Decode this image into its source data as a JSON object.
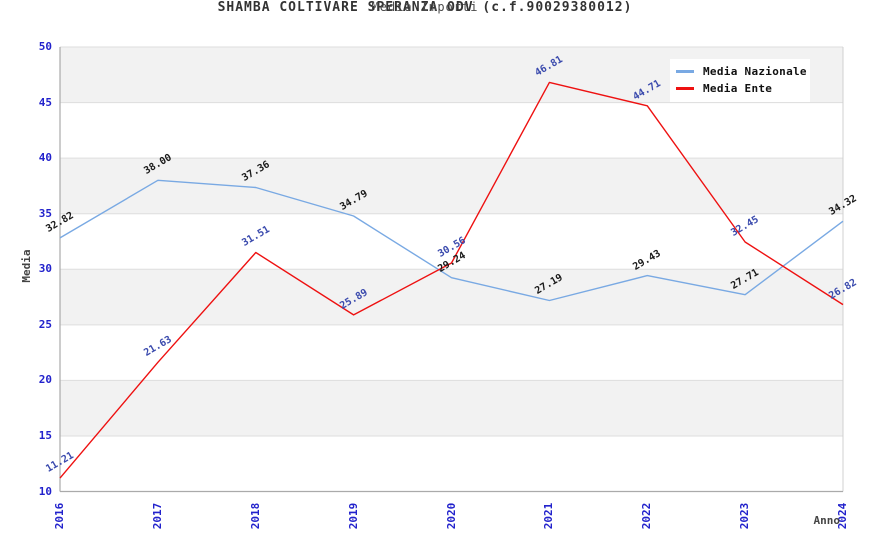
{
  "title": "SHAMBA COLTIVARE SPERANZA ODV (c.f.90029380012)",
  "subtitle": "Media Importi",
  "chart_data": {
    "type": "line",
    "title": "SHAMBA COLTIVARE SPERANZA ODV (c.f.90029380012)",
    "subtitle": "Media Importi",
    "xlabel": "Anno",
    "ylabel": "Media",
    "x": [
      2016,
      2017,
      2018,
      2019,
      2020,
      2021,
      2022,
      2023,
      2024
    ],
    "series": [
      {
        "name": "Media Nazionale",
        "color": "#79a9e3",
        "label_color": "#1a1a1a",
        "values": [
          32.82,
          38.0,
          37.36,
          34.79,
          29.24,
          27.19,
          29.43,
          27.71,
          34.32
        ]
      },
      {
        "name": "Media Ente",
        "color": "#ee1111",
        "label_color": "#3a4aad",
        "values": [
          11.21,
          21.63,
          31.51,
          25.89,
          30.56,
          46.81,
          44.71,
          32.45,
          26.82
        ]
      }
    ],
    "ylim": [
      10,
      50
    ],
    "ytick_step": 5,
    "grid": true,
    "legend_position": "top-right",
    "colors": {
      "tick_label": "#2222cc",
      "axis_title": "#444444",
      "band_even": "#ffffff",
      "band_odd": "#f2f2f2",
      "gridline": "#dedede",
      "axis_line": "#aaaaaa",
      "plot_border": "#d0d0d0"
    }
  }
}
